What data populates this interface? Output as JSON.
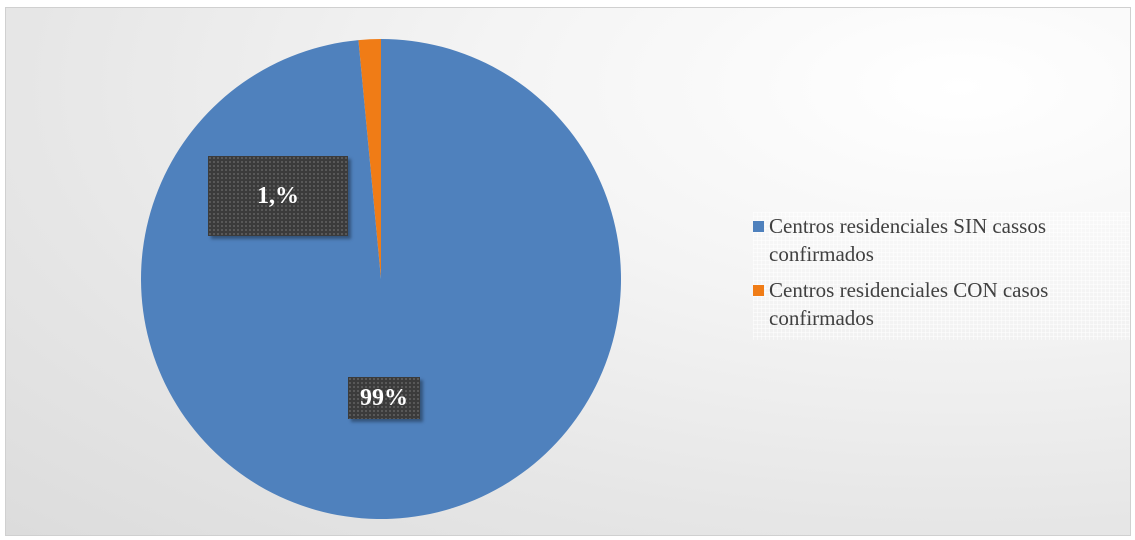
{
  "chart_data": {
    "type": "pie",
    "title": "",
    "slices": [
      {
        "label": "Centros residenciales SIN cassos confirmados",
        "value": 98.5,
        "data_label": "99%",
        "color": "#4f81bd"
      },
      {
        "label": "Centros residenciales CON casos confirmados",
        "value": 1.5,
        "data_label": "1,%",
        "color": "#f07c16"
      }
    ],
    "legend_position": "right"
  }
}
